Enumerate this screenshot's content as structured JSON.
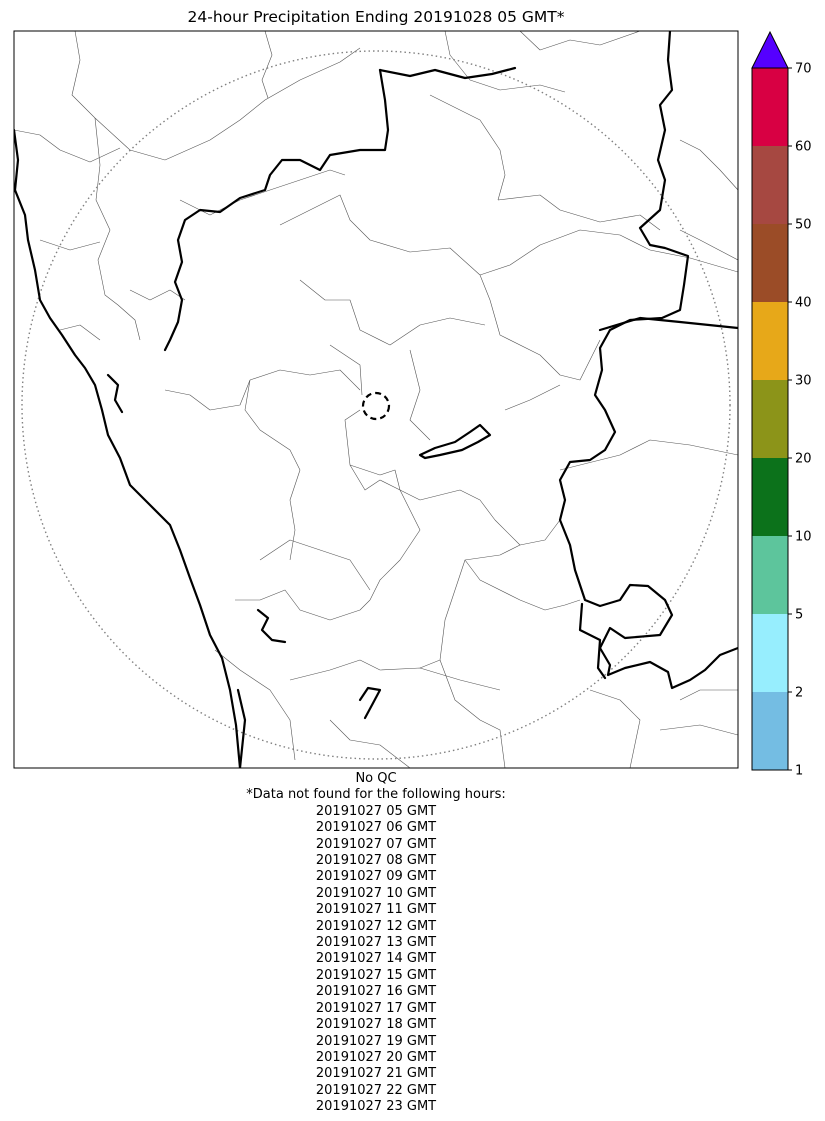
{
  "title": "24-hour Precipitation Ending 20191028 05 GMT*",
  "map": {
    "background": "#ffffff",
    "coastline_color": "#000000",
    "boundary_color": "#555555",
    "range_ring_color": "#808080"
  },
  "colorbar": {
    "extend": "max",
    "over_color": "#5500ff",
    "bins": [
      {
        "from": 1,
        "to": 2,
        "color": "#74bde3"
      },
      {
        "from": 2,
        "to": 5,
        "color": "#97eefe"
      },
      {
        "from": 5,
        "to": 10,
        "color": "#5dc59c"
      },
      {
        "from": 10,
        "to": 20,
        "color": "#0c721b"
      },
      {
        "from": 20,
        "to": 30,
        "color": "#8c9419"
      },
      {
        "from": 30,
        "to": 40,
        "color": "#e7a819"
      },
      {
        "from": 40,
        "to": 50,
        "color": "#9b4c27"
      },
      {
        "from": 50,
        "to": 60,
        "color": "#a64841"
      },
      {
        "from": 60,
        "to": 70,
        "color": "#d80043"
      }
    ],
    "tick_labels": [
      "1",
      "2",
      "5",
      "10",
      "20",
      "30",
      "40",
      "50",
      "60",
      "70"
    ]
  },
  "notes": {
    "qc": "No QC",
    "missing_header": "*Data not found for the following hours:",
    "missing_hours": [
      "20191027 05 GMT",
      "20191027 06 GMT",
      "20191027 07 GMT",
      "20191027 08 GMT",
      "20191027 09 GMT",
      "20191027 10 GMT",
      "20191027 11 GMT",
      "20191027 12 GMT",
      "20191027 13 GMT",
      "20191027 14 GMT",
      "20191027 15 GMT",
      "20191027 16 GMT",
      "20191027 17 GMT",
      "20191027 18 GMT",
      "20191027 19 GMT",
      "20191027 20 GMT",
      "20191027 21 GMT",
      "20191027 22 GMT",
      "20191027 23 GMT"
    ]
  }
}
